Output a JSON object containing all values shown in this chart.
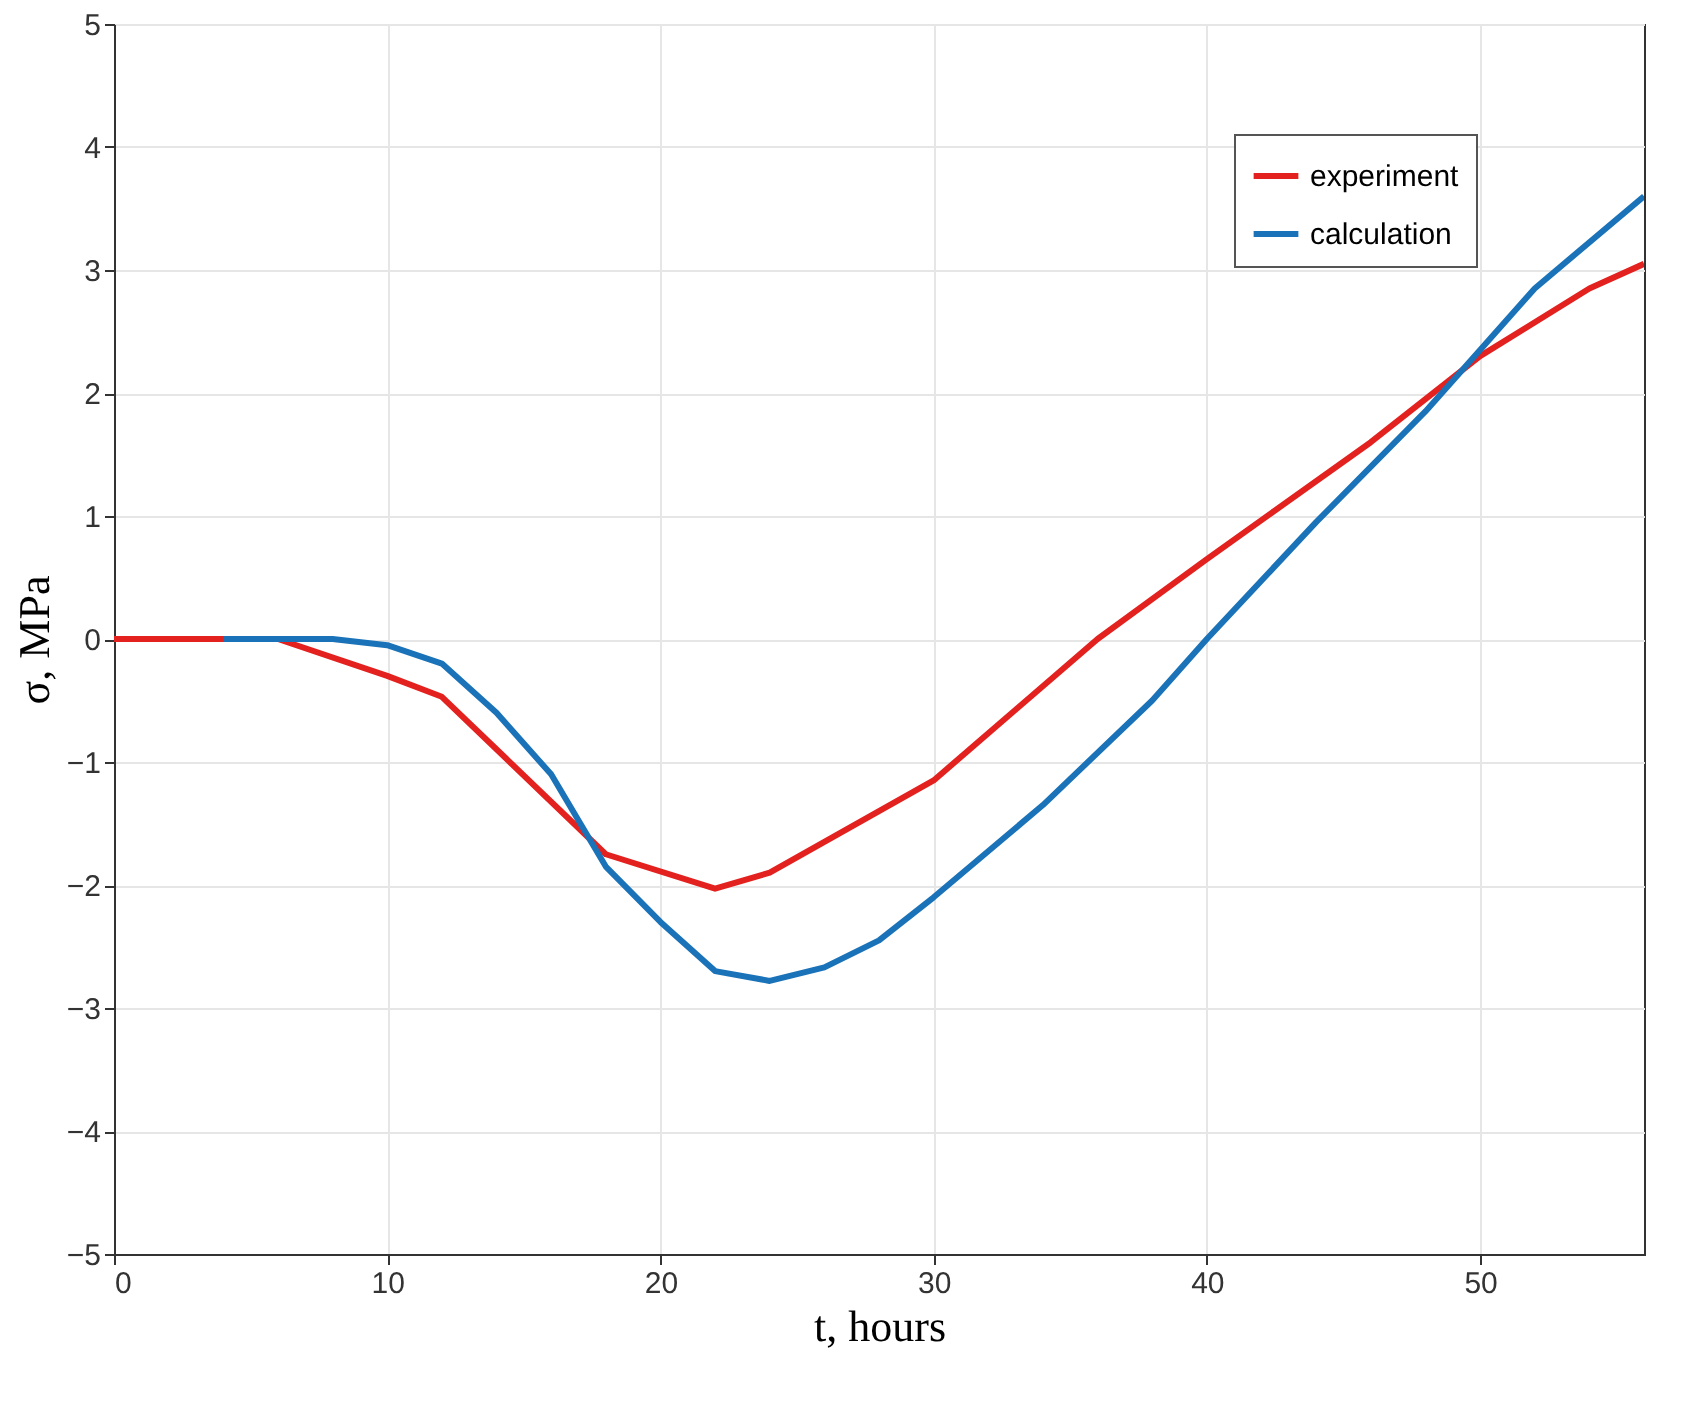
{
  "chart_data": {
    "type": "line",
    "xlabel": "t, hours",
    "ylabel": "σ, MPa",
    "xlim": [
      0,
      56
    ],
    "xticks": [
      0,
      10,
      20,
      30,
      40,
      50
    ],
    "ylim": [
      -5,
      5
    ],
    "yticks": [
      -5,
      -4,
      -3,
      -2,
      -1,
      0,
      1,
      2,
      3,
      4,
      5
    ],
    "grid": true,
    "legend": "top right",
    "line_style": "solid",
    "series": [
      {
        "name": "experiment",
        "color": "#e3211f",
        "x": [
          0,
          4,
          6,
          10,
          12,
          18,
          22,
          24,
          30,
          36,
          40,
          46,
          50,
          54,
          56
        ],
        "values": [
          0,
          0,
          0,
          -0.3,
          -0.47,
          -1.75,
          -2.03,
          -1.9,
          -1.15,
          0,
          0.65,
          1.6,
          2.3,
          2.85,
          3.05
        ]
      },
      {
        "name": "calculation",
        "color": "#1a72b8",
        "x": [
          4,
          8,
          10,
          12,
          14,
          16,
          18,
          20,
          22,
          24,
          26,
          28,
          30,
          34,
          38,
          40,
          44,
          48,
          50,
          52,
          56
        ],
        "values": [
          0,
          0,
          -0.05,
          -0.2,
          -0.6,
          -1.1,
          -1.85,
          -2.3,
          -2.7,
          -2.78,
          -2.67,
          -2.45,
          -2.1,
          -1.35,
          -0.5,
          0,
          0.95,
          1.85,
          2.35,
          2.85,
          3.6
        ]
      }
    ]
  }
}
